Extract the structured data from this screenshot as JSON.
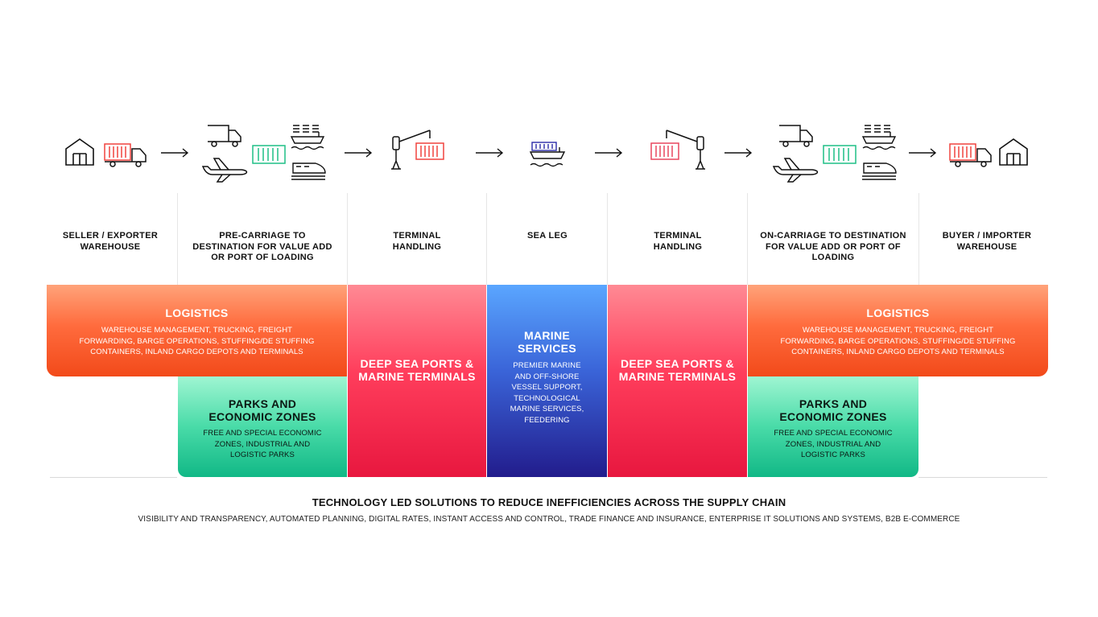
{
  "stages": {
    "s1": "SELLER / EXPORTER WAREHOUSE",
    "s2": "PRE-CARRIAGE TO DESTINATION FOR VALUE ADD OR PORT OF LOADING",
    "s3": "TERMINAL HANDLING",
    "s4": "SEA LEG",
    "s5": "TERMINAL HANDLING",
    "s6": "ON-CARRIAGE TO DESTINATION FOR VALUE ADD OR PORT OF LOADING",
    "s7": "BUYER / IMPORTER WAREHOUSE"
  },
  "icons": {
    "warehouse": "warehouse-icon",
    "truck": "truck-icon",
    "plane": "plane-icon",
    "ship": "ship-icon",
    "train": "train-icon",
    "container": "container-icon",
    "crane": "crane-icon",
    "arrow": "arrow-right-icon"
  },
  "logistics_left": {
    "title": "LOGISTICS",
    "desc": "WAREHOUSE MANAGEMENT, TRUCKING, FREIGHT FORWARDING, BARGE OPERATIONS, STUFFING/DE  STUFFING CONTAINERS, INLAND CARGO DEPOTS AND TERMINALS"
  },
  "logistics_right": {
    "title": "LOGISTICS",
    "desc": "WAREHOUSE MANAGEMENT, TRUCKING, FREIGHT FORWARDING, BARGE OPERATIONS, STUFFING/DE  STUFFING CONTAINERS, INLAND CARGO DEPOTS AND TERMINALS"
  },
  "ports_left": {
    "title": "DEEP SEA PORTS & MARINE TERMINALS"
  },
  "ports_right": {
    "title": "DEEP SEA PORTS & MARINE TERMINALS"
  },
  "marine": {
    "title": "MARINE SERVICES",
    "desc": "PREMIER MARINE AND OFF-SHORE VESSEL SUPPORT, TECHNOLOGICAL MARINE SERVICES, FEEDERING"
  },
  "parks_left": {
    "title": "PARKS AND ECONOMIC ZONES",
    "desc": "FREE AND SPECIAL ECONOMIC ZONES, INDUSTRIAL AND LOGISTIC PARKS"
  },
  "parks_right": {
    "title": "PARKS AND ECONOMIC ZONES",
    "desc": "FREE AND SPECIAL ECONOMIC ZONES, INDUSTRIAL AND LOGISTIC PARKS"
  },
  "tech": {
    "title": "TECHNOLOGY LED SOLUTIONS TO REDUCE INEFFICIENCIES ACROSS THE SUPPLY CHAIN",
    "desc": "VISIBILITY AND TRANSPARENCY, AUTOMATED PLANNING, DIGITAL RATES, INSTANT ACCESS AND CONTROL, TRADE FINANCE AND INSURANCE, ENTERPRISE IT SOLUTIONS AND SYSTEMS, B2B E-COMMERCE"
  },
  "colors": {
    "logistics": "#ff6b3d",
    "ports": "#ff3e5c",
    "marine": "#3a64d8",
    "parks": "#49dba8",
    "container_red": "#f0433f",
    "container_green": "#1fbf86",
    "container_blue": "#2a2aa8",
    "container_pink": "#e8475f"
  }
}
